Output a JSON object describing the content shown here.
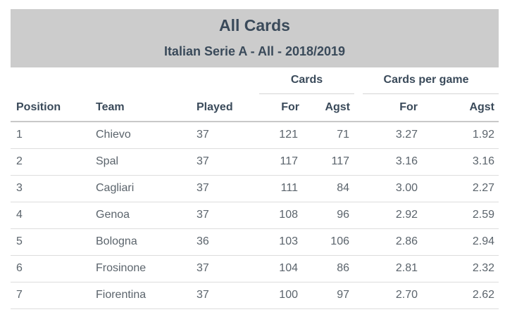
{
  "banner": {
    "title": "All Cards",
    "subtitle": "Italian Serie A - All - 2018/2019"
  },
  "groups": {
    "cards": "Cards",
    "cards_per_game": "Cards per game"
  },
  "columns": {
    "position": "Position",
    "team": "Team",
    "played": "Played",
    "for": "For",
    "agst": "Agst",
    "pg_for": "For",
    "pg_agst": "Agst"
  },
  "rows": [
    {
      "position": "1",
      "team": "Chievo",
      "played": "37",
      "for": "121",
      "agst": "71",
      "pg_for": "3.27",
      "pg_agst": "1.92"
    },
    {
      "position": "2",
      "team": "Spal",
      "played": "37",
      "for": "117",
      "agst": "117",
      "pg_for": "3.16",
      "pg_agst": "3.16"
    },
    {
      "position": "3",
      "team": "Cagliari",
      "played": "37",
      "for": "111",
      "agst": "84",
      "pg_for": "3.00",
      "pg_agst": "2.27"
    },
    {
      "position": "4",
      "team": "Genoa",
      "played": "37",
      "for": "108",
      "agst": "96",
      "pg_for": "2.92",
      "pg_agst": "2.59"
    },
    {
      "position": "5",
      "team": "Bologna",
      "played": "36",
      "for": "103",
      "agst": "106",
      "pg_for": "2.86",
      "pg_agst": "2.94"
    },
    {
      "position": "6",
      "team": "Frosinone",
      "played": "37",
      "for": "104",
      "agst": "86",
      "pg_for": "2.81",
      "pg_agst": "2.32"
    },
    {
      "position": "7",
      "team": "Fiorentina",
      "played": "37",
      "for": "100",
      "agst": "97",
      "pg_for": "2.70",
      "pg_agst": "2.62"
    }
  ]
}
